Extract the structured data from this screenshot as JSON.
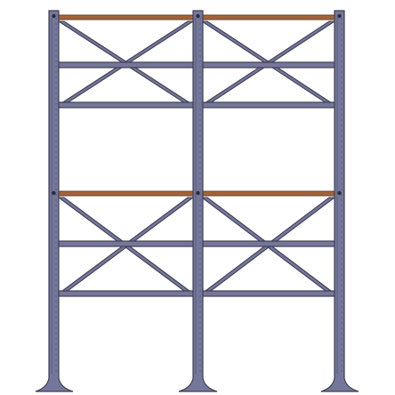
{
  "scene": {
    "subject": "steel-scaffold-frame",
    "columns": 3,
    "levels": 2,
    "bays": 2,
    "colors": {
      "steel": "#75779a",
      "steel_outline": "#3f4055",
      "wood_beam": "#a3643a",
      "background": "#ffffff"
    }
  }
}
